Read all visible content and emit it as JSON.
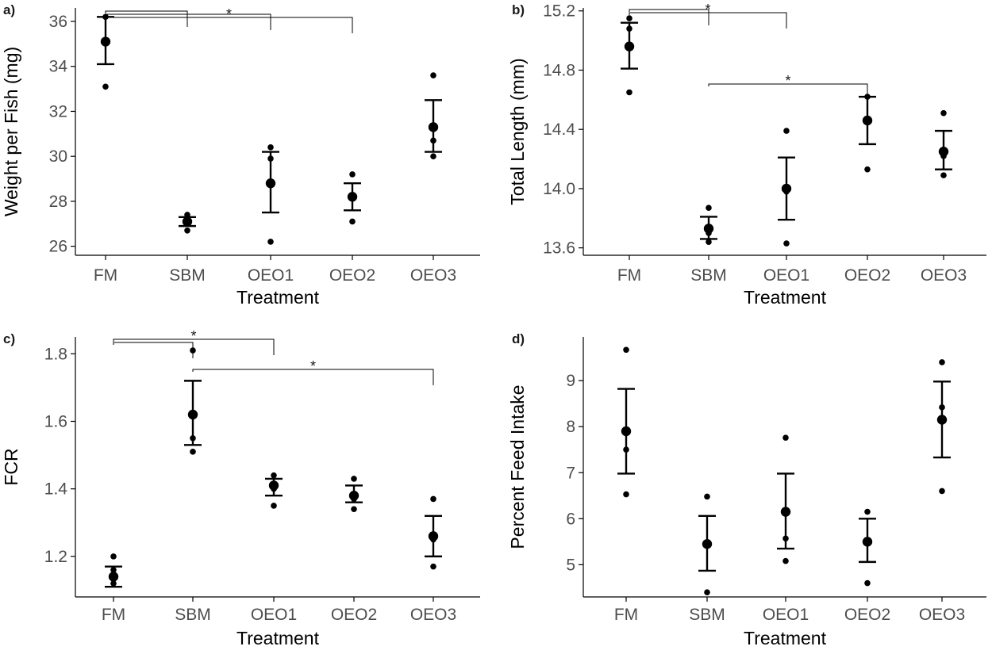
{
  "colors": {
    "ink": "#000000",
    "tick_text": "#4d4d4d",
    "background": "#ffffff"
  },
  "chart_data": [
    {
      "panel_label": "a)",
      "type": "scatter",
      "title": "",
      "xlabel": "Treatment",
      "ylabel": "Weight per Fish (mg)",
      "categories": [
        "FM",
        "SBM",
        "OEO1",
        "OEO2",
        "OEO3"
      ],
      "yticks": [
        "26",
        "28",
        "30",
        "32",
        "34",
        "36"
      ],
      "ylim": [
        25.6,
        36.6
      ],
      "means": [
        35.1,
        27.1,
        28.8,
        28.2,
        31.3
      ],
      "error_bars": [
        [
          34.1,
          36.2
        ],
        [
          26.9,
          27.3
        ],
        [
          27.5,
          30.2
        ],
        [
          27.6,
          28.8
        ],
        [
          30.2,
          32.5
        ]
      ],
      "points": [
        [
          36.2,
          35.1,
          33.1
        ],
        [
          27.4,
          27.1,
          26.7
        ],
        [
          30.4,
          29.9,
          26.2
        ],
        [
          29.2,
          28.2,
          27.1
        ],
        [
          33.6,
          30.7,
          30.0
        ]
      ],
      "significance": [
        {
          "from": "FM",
          "to": "SBM",
          "label": ""
        },
        {
          "from": "FM",
          "to": "OEO1",
          "label": ""
        },
        {
          "from": "FM",
          "to": "OEO2",
          "label": "*"
        }
      ],
      "grid": false,
      "legend": "none"
    },
    {
      "panel_label": "b)",
      "type": "scatter",
      "title": "",
      "xlabel": "Treatment",
      "ylabel": "Total Length (mm)",
      "categories": [
        "FM",
        "SBM",
        "OEO1",
        "OEO2",
        "OEO3"
      ],
      "yticks": [
        "13.6",
        "14.0",
        "14.4",
        "14.8",
        "15.2"
      ],
      "ylim": [
        13.55,
        15.22
      ],
      "means": [
        14.96,
        13.73,
        14.0,
        14.46,
        14.25
      ],
      "error_bars": [
        [
          14.81,
          15.12
        ],
        [
          13.66,
          13.81
        ],
        [
          13.79,
          14.21
        ],
        [
          14.3,
          14.62
        ],
        [
          14.13,
          14.39
        ]
      ],
      "points": [
        [
          15.15,
          15.08,
          14.65
        ],
        [
          13.87,
          13.7,
          13.64
        ],
        [
          14.39,
          13.98,
          13.63
        ],
        [
          14.62,
          14.45,
          14.13
        ],
        [
          14.51,
          14.22,
          14.09
        ]
      ],
      "significance": [
        {
          "from": "FM",
          "to": "SBM",
          "label": ""
        },
        {
          "from": "FM",
          "to": "OEO1",
          "label": "*"
        },
        {
          "from": "SBM",
          "to": "OEO2",
          "label": "*"
        }
      ],
      "grid": false,
      "legend": "none"
    },
    {
      "panel_label": "c)",
      "type": "scatter",
      "title": "",
      "xlabel": "Treatment",
      "ylabel": "FCR",
      "categories": [
        "FM",
        "SBM",
        "OEO1",
        "OEO2",
        "OEO3"
      ],
      "yticks": [
        "1.2",
        "1.4",
        "1.6",
        "1.8"
      ],
      "ylim": [
        1.08,
        1.85
      ],
      "means": [
        1.14,
        1.62,
        1.41,
        1.38,
        1.26
      ],
      "error_bars": [
        [
          1.11,
          1.17
        ],
        [
          1.53,
          1.72
        ],
        [
          1.38,
          1.43
        ],
        [
          1.36,
          1.41
        ],
        [
          1.2,
          1.32
        ]
      ],
      "points": [
        [
          1.2,
          1.16,
          1.12
        ],
        [
          1.81,
          1.55,
          1.51
        ],
        [
          1.44,
          1.4,
          1.35
        ],
        [
          1.43,
          1.37,
          1.34
        ],
        [
          1.37,
          1.25,
          1.17
        ]
      ],
      "significance": [
        {
          "from": "FM",
          "to": "SBM",
          "label": ""
        },
        {
          "from": "FM",
          "to": "OEO1",
          "label": "*"
        },
        {
          "from": "SBM",
          "to": "OEO3",
          "label": "*"
        }
      ],
      "grid": false,
      "legend": "none"
    },
    {
      "panel_label": "d)",
      "type": "scatter",
      "title": "",
      "xlabel": "Treatment",
      "ylabel": "Percent Feed Intake",
      "categories": [
        "FM",
        "SBM",
        "OEO1",
        "OEO2",
        "OEO3"
      ],
      "yticks": [
        "5",
        "6",
        "7",
        "8",
        "9"
      ],
      "ylim": [
        4.3,
        9.95
      ],
      "means": [
        7.9,
        5.45,
        6.15,
        5.5,
        8.15
      ],
      "error_bars": [
        [
          6.98,
          8.82
        ],
        [
          4.87,
          6.06
        ],
        [
          5.35,
          6.98
        ],
        [
          5.06,
          6.0
        ],
        [
          7.33,
          8.98
        ]
      ],
      "points": [
        [
          9.67,
          7.5,
          6.53
        ],
        [
          6.48,
          5.42,
          4.4
        ],
        [
          7.76,
          5.57,
          5.08
        ],
        [
          6.15,
          5.52,
          4.6
        ],
        [
          9.4,
          8.42,
          6.6
        ]
      ],
      "significance": [],
      "grid": false,
      "legend": "none"
    }
  ]
}
